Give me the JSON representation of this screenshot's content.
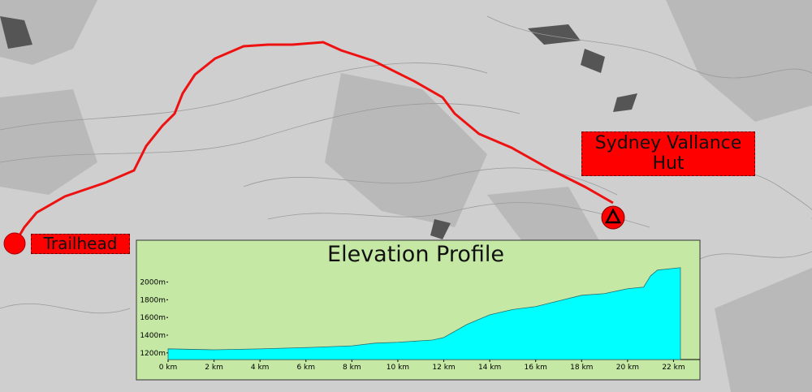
{
  "map": {
    "start_label": "Trailhead",
    "end_label": "Sydney Vallance Hut"
  },
  "chart_data": {
    "type": "area",
    "title": "Elevation Profile",
    "x": [
      0,
      1,
      2,
      4,
      6,
      8,
      9,
      10,
      11,
      11.5,
      12,
      13,
      14,
      15,
      16,
      17,
      18,
      19,
      20,
      20.7,
      21,
      21.3,
      22.3
    ],
    "series": [
      {
        "color": "#00ffff",
        "values": [
          1246,
          1240,
          1235,
          1245,
          1260,
          1280,
          1310,
          1320,
          1337,
          1345,
          1374,
          1520,
          1630,
          1690,
          1723,
          1787,
          1851,
          1870,
          1925,
          1943,
          2070,
          2135,
          2163
        ]
      }
    ],
    "xlim": [
      0,
      23.15
    ],
    "ylim": [
      1125,
      2225
    ],
    "xticks": [
      {
        "value": 0,
        "label": "0 km"
      },
      {
        "value": 2,
        "label": "2 km"
      },
      {
        "value": 4,
        "label": "4 km"
      },
      {
        "value": 6,
        "label": "6 km"
      },
      {
        "value": 8,
        "label": "8 km"
      },
      {
        "value": 10,
        "label": "10 km"
      },
      {
        "value": 12,
        "label": "12 km"
      },
      {
        "value": 14,
        "label": "14 km"
      },
      {
        "value": 16,
        "label": "16 km"
      },
      {
        "value": 18,
        "label": "18 km"
      },
      {
        "value": 20,
        "label": "20 km"
      },
      {
        "value": 22,
        "label": "22 km"
      }
    ],
    "yticks": [
      {
        "value": 1200,
        "label": "1200m"
      },
      {
        "value": 1400,
        "label": "1400m"
      },
      {
        "value": 1600,
        "label": "1600m"
      },
      {
        "value": 1800,
        "label": "1800m"
      },
      {
        "value": 2000,
        "label": "2000m"
      }
    ],
    "grid": false
  }
}
